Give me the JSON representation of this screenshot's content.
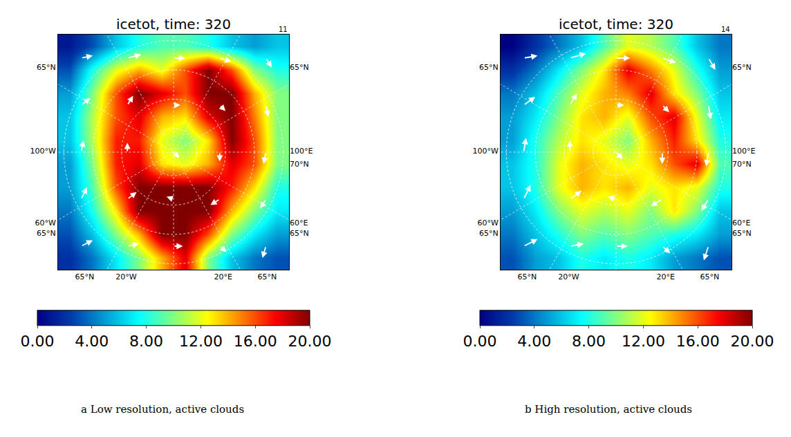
{
  "chart_data": [
    {
      "type": "heatmap",
      "title": "icetot, time: 320",
      "corner_label": "11",
      "caption": "a Low resolution, active clouds",
      "color": "jet",
      "x": [
        -0.9,
        -0.7,
        -0.5,
        -0.3,
        -0.1,
        0.1,
        0.3,
        0.5,
        0.7,
        0.9
      ],
      "y": [
        0.9,
        0.7,
        0.5,
        0.3,
        0.1,
        -0.1,
        -0.3,
        -0.5,
        -0.7,
        -0.9
      ],
      "z": [
        [
          1,
          3,
          6,
          8,
          9,
          9,
          8,
          6,
          5,
          6
        ],
        [
          3,
          8,
          12,
          14,
          12,
          16,
          20,
          16,
          10,
          8
        ],
        [
          5,
          10,
          16,
          20,
          18,
          16,
          20,
          20,
          14,
          10
        ],
        [
          6,
          11,
          16,
          18,
          14,
          13,
          18,
          20,
          15,
          10
        ],
        [
          6,
          11,
          17,
          17,
          12,
          10,
          13,
          20,
          16,
          10
        ],
        [
          5,
          10,
          17,
          18,
          13,
          12,
          14,
          18,
          16,
          10
        ],
        [
          5,
          9,
          16,
          20,
          20,
          20,
          20,
          17,
          13,
          8
        ],
        [
          4,
          8,
          13,
          20,
          20,
          20,
          20,
          14,
          10,
          7
        ],
        [
          3,
          6,
          10,
          14,
          20,
          20,
          16,
          10,
          7,
          5
        ],
        [
          2,
          4,
          7,
          10,
          14,
          18,
          10,
          6,
          4,
          3
        ]
      ],
      "xlim": [
        -1,
        1
      ],
      "ylim": [
        -1,
        1
      ],
      "xticks": [
        {
          "value": -0.77,
          "label": "65°N"
        },
        {
          "value": -0.41,
          "label": "20°W"
        },
        {
          "value": 0.43,
          "label": "20°E"
        },
        {
          "value": 0.81,
          "label": "65°N"
        }
      ],
      "yticks": [
        {
          "value": 0.72,
          "label": "65°N"
        },
        {
          "value": 0.01,
          "label": "100°W"
        },
        {
          "value": -0.6,
          "label": "60°W"
        },
        {
          "value": -0.69,
          "label": "65°N"
        }
      ],
      "y2ticks": [
        {
          "value": 0.72,
          "label": "65°N"
        },
        {
          "value": 0.01,
          "label": "100°E"
        },
        {
          "value": -0.1,
          "label": "70°N"
        },
        {
          "value": -0.6,
          "label": "60°E"
        },
        {
          "value": -0.69,
          "label": "65°N"
        }
      ],
      "colorbar_range": [
        0,
        20
      ],
      "colorbar_ticks": [
        {
          "value": 0,
          "label": "0.00"
        },
        {
          "value": 4,
          "label": "4.00"
        },
        {
          "value": 8,
          "label": "8.00"
        },
        {
          "value": 12,
          "label": "12.00"
        },
        {
          "value": 16,
          "label": "16.00"
        },
        {
          "value": 20,
          "label": "20.00"
        }
      ],
      "vectors": {
        "x": [
          -0.8,
          -0.4,
          0,
          0.4,
          0.8,
          -0.8,
          -0.4,
          0,
          0.4,
          0.8,
          -0.8,
          -0.4,
          0,
          0.4,
          0.8,
          -0.8,
          -0.4,
          0,
          0.4,
          0.8,
          -0.8,
          -0.4,
          0,
          0.4,
          0.8
        ],
        "y": [
          0.8,
          0.8,
          0.8,
          0.8,
          0.8,
          0.4,
          0.4,
          0.4,
          0.4,
          0.4,
          0,
          0,
          0,
          0,
          0,
          -0.4,
          -0.4,
          -0.4,
          -0.4,
          -0.4,
          -0.8,
          -0.8,
          -0.8,
          -0.8,
          -0.8
        ],
        "u": [
          0.1,
          0.12,
          0.1,
          0.1,
          0.05,
          0.08,
          0.05,
          0.06,
          0.05,
          0.02,
          0.02,
          0.0,
          0.05,
          0.0,
          -0.02,
          0.05,
          0.08,
          -0.06,
          -0.08,
          -0.05,
          0.1,
          0.1,
          0.08,
          0.06,
          -0.03
        ],
        "v": [
          0.02,
          0.03,
          0.0,
          -0.03,
          -0.08,
          0.06,
          0.08,
          0.0,
          -0.05,
          -0.1,
          0.1,
          0.08,
          -0.05,
          -0.08,
          -0.1,
          0.1,
          0.06,
          0.02,
          -0.05,
          -0.08,
          0.05,
          0.02,
          0.0,
          -0.05,
          -0.1
        ]
      }
    },
    {
      "type": "heatmap",
      "title": "icetot, time: 320",
      "corner_label": "14",
      "caption": "b High resolution, active clouds",
      "color": "jet",
      "x": [
        -0.9,
        -0.7,
        -0.5,
        -0.3,
        -0.1,
        0.1,
        0.3,
        0.5,
        0.7,
        0.9
      ],
      "y": [
        0.9,
        0.7,
        0.5,
        0.3,
        0.1,
        -0.1,
        -0.3,
        -0.5,
        -0.7,
        -0.9
      ],
      "z": [
        [
          0,
          2,
          4,
          6,
          9,
          12,
          11,
          9,
          6,
          4
        ],
        [
          2,
          4,
          7,
          10,
          13,
          18,
          15,
          12,
          8,
          5
        ],
        [
          4,
          6,
          9,
          12,
          14,
          15,
          18,
          13,
          10,
          6
        ],
        [
          5,
          7,
          10,
          13,
          14,
          12,
          16,
          18,
          12,
          7
        ],
        [
          5,
          8,
          11,
          13,
          12,
          10,
          14,
          17,
          13,
          8
        ],
        [
          6,
          8,
          12,
          14,
          13,
          12,
          13,
          16,
          18,
          9
        ],
        [
          6,
          8,
          12,
          14,
          13,
          14,
          12,
          13,
          12,
          8
        ],
        [
          5,
          7,
          10,
          12,
          11,
          12,
          10,
          13,
          10,
          6
        ],
        [
          4,
          6,
          8,
          10,
          9,
          10,
          9,
          8,
          7,
          5
        ],
        [
          3,
          5,
          6,
          8,
          7,
          8,
          7,
          5,
          4,
          3
        ]
      ],
      "xlim": [
        -1,
        1
      ],
      "ylim": [
        -1,
        1
      ],
      "xticks": [
        {
          "value": -0.77,
          "label": "65°N"
        },
        {
          "value": -0.41,
          "label": "20°W"
        },
        {
          "value": 0.43,
          "label": "20°E"
        },
        {
          "value": 0.81,
          "label": "65°N"
        }
      ],
      "yticks": [
        {
          "value": 0.72,
          "label": "65°N"
        },
        {
          "value": 0.01,
          "label": "100°W"
        },
        {
          "value": -0.6,
          "label": "60°W"
        },
        {
          "value": -0.69,
          "label": "65°N"
        }
      ],
      "y2ticks": [
        {
          "value": 0.72,
          "label": "65°N"
        },
        {
          "value": 0.01,
          "label": "100°E"
        },
        {
          "value": -0.1,
          "label": "70°N"
        },
        {
          "value": -0.6,
          "label": "60°E"
        },
        {
          "value": -0.69,
          "label": "65°N"
        }
      ],
      "colorbar_range": [
        0,
        20
      ],
      "colorbar_ticks": [
        {
          "value": 0,
          "label": "0.00"
        },
        {
          "value": 4,
          "label": "4.00"
        },
        {
          "value": 8,
          "label": "8.00"
        },
        {
          "value": 12,
          "label": "12.00"
        },
        {
          "value": 16,
          "label": "16.00"
        },
        {
          "value": 20,
          "label": "20.00"
        }
      ],
      "vectors": {
        "x": [
          -0.8,
          -0.4,
          0,
          0.4,
          0.8,
          -0.8,
          -0.4,
          0,
          0.4,
          0.8,
          -0.8,
          -0.4,
          0,
          0.4,
          0.8,
          -0.8,
          -0.4,
          0,
          0.4,
          0.8,
          -0.8,
          -0.4,
          0,
          0.4,
          0.8
        ],
        "y": [
          0.8,
          0.8,
          0.8,
          0.8,
          0.8,
          0.4,
          0.4,
          0.4,
          0.4,
          0.4,
          0,
          0,
          0,
          0,
          0,
          -0.4,
          -0.4,
          -0.4,
          -0.4,
          -0.4,
          -0.8,
          -0.8,
          -0.8,
          -0.8,
          -0.8
        ],
        "u": [
          0.12,
          0.14,
          0.12,
          0.12,
          0.06,
          0.1,
          0.06,
          0.07,
          0.06,
          0.02,
          0.02,
          0.0,
          0.06,
          0.0,
          -0.02,
          0.06,
          0.1,
          -0.07,
          -0.1,
          -0.06,
          0.12,
          0.12,
          0.1,
          0.07,
          -0.04
        ],
        "v": [
          0.02,
          0.04,
          0.0,
          -0.04,
          -0.1,
          0.07,
          0.1,
          0.0,
          -0.06,
          -0.12,
          0.12,
          0.1,
          -0.06,
          -0.1,
          -0.12,
          0.12,
          0.07,
          0.02,
          -0.06,
          -0.1,
          0.06,
          0.02,
          0.0,
          -0.06,
          -0.12
        ]
      }
    }
  ]
}
